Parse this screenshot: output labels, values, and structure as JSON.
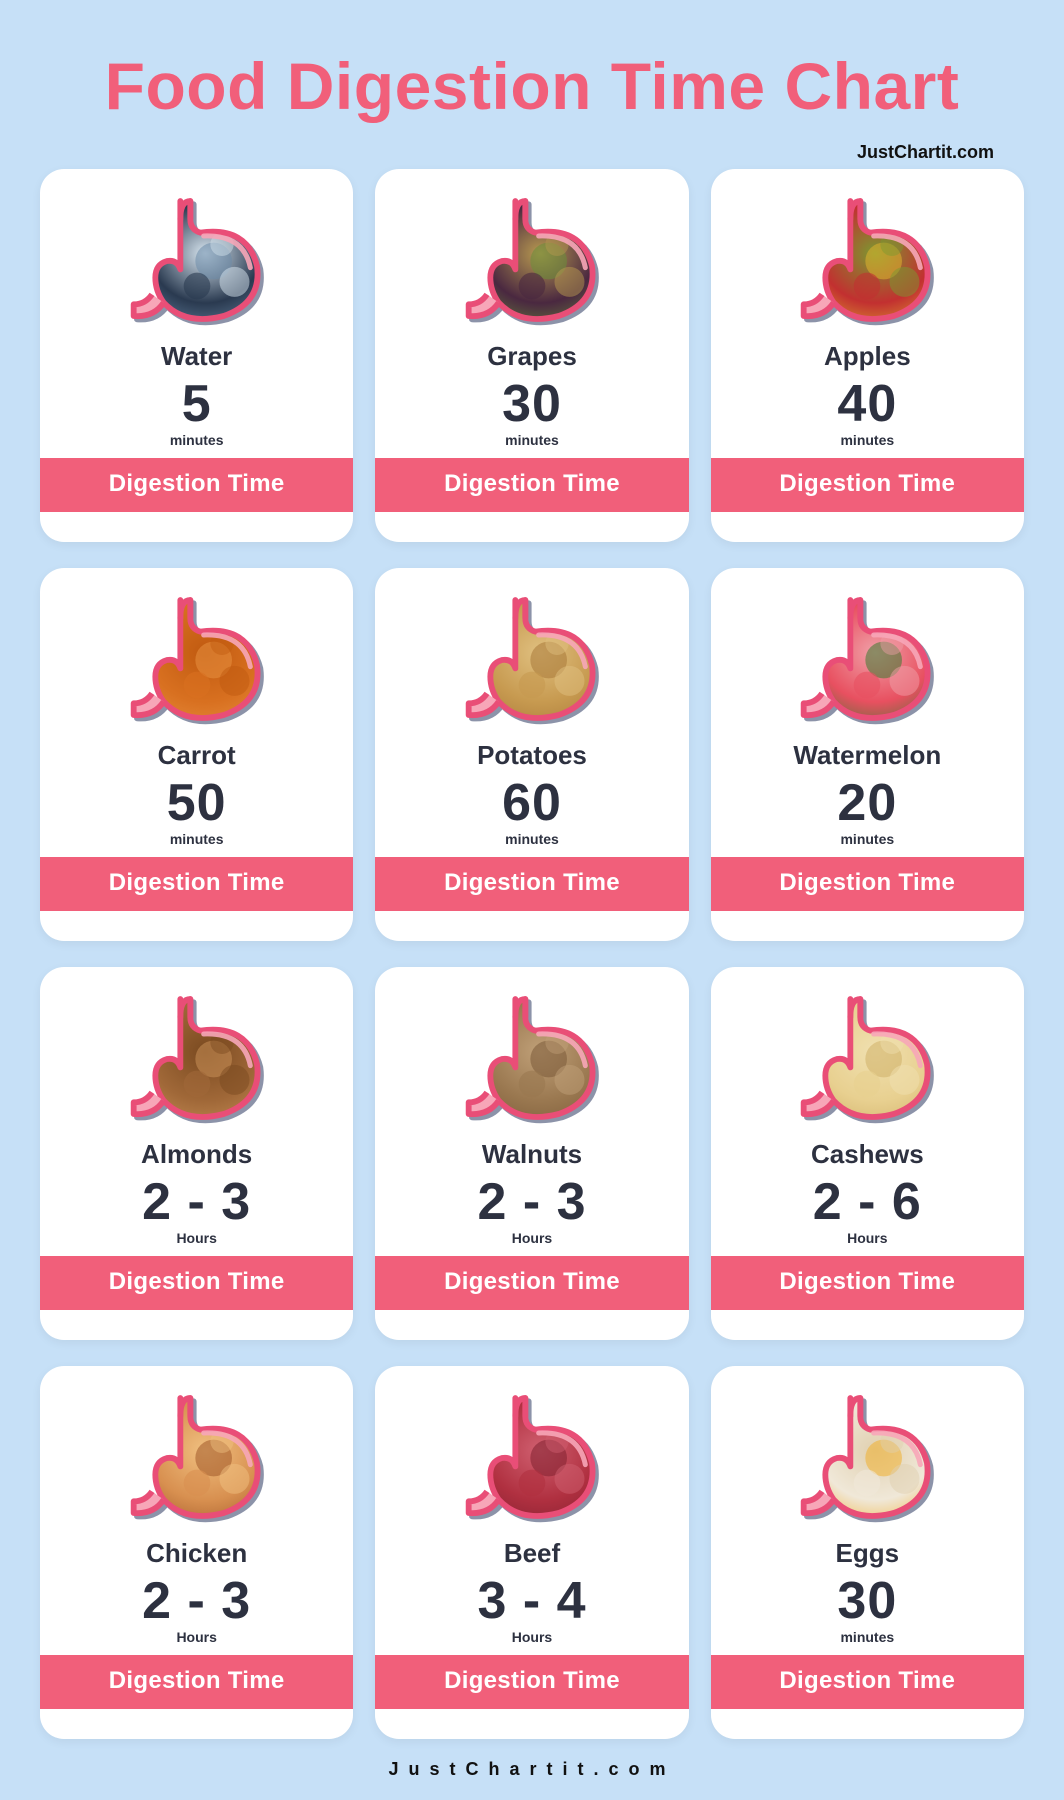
{
  "title": "Food Digestion Time Chart",
  "attribution_top": "JustChartit.com",
  "attribution_bottom": "JustChartit.com",
  "banner_label": "Digestion Time",
  "colors": {
    "background": "#c6e0f7",
    "card_bg": "#ffffff",
    "title": "#f15f7a",
    "banner_bg": "#f15f7a",
    "banner_text": "#ffffff",
    "text_dark": "#2d3140",
    "stomach_outline": "#e94e77",
    "stomach_highlight": "#f7a6b8",
    "stomach_shadow": "#2d3b63"
  },
  "typography": {
    "title_fontsize": 66,
    "food_name_fontsize": 26,
    "duration_fontsize": 52,
    "unit_fontsize": 14,
    "banner_fontsize": 24,
    "attribution_fontsize": 18
  },
  "layout": {
    "columns": 3,
    "rows": 4,
    "card_radius": 24,
    "gap_row": 26,
    "gap_col": 22
  },
  "food_fills": {
    "Water": [
      "#2a3a50",
      "#6c8aa8",
      "#d8e6f0"
    ],
    "Grapes": [
      "#4a2840",
      "#6a8e3a",
      "#b89a50"
    ],
    "Apples": [
      "#c23030",
      "#e0b030",
      "#7a9a30"
    ],
    "Carrot": [
      "#d87020",
      "#e89040",
      "#c05a10"
    ],
    "Potatoes": [
      "#c79a50",
      "#a87838",
      "#e0c080"
    ],
    "Watermelon": [
      "#e85060",
      "#3a7a30",
      "#f0a0a8"
    ],
    "Almonds": [
      "#a06838",
      "#c89058",
      "#7a4a20"
    ],
    "Walnuts": [
      "#9a7850",
      "#7a5a38",
      "#c0a078"
    ],
    "Cashews": [
      "#e8d090",
      "#d0b068",
      "#f0e0b0"
    ],
    "Chicken": [
      "#d89050",
      "#a05828",
      "#f0c080"
    ],
    "Beef": [
      "#b03040",
      "#802030",
      "#d06070"
    ],
    "Eggs": [
      "#f0e8d8",
      "#f0b030",
      "#e0d0b0"
    ]
  },
  "items": [
    {
      "name": "Water",
      "duration": "5",
      "unit": "minutes"
    },
    {
      "name": "Grapes",
      "duration": "30",
      "unit": "minutes"
    },
    {
      "name": "Apples",
      "duration": "40",
      "unit": "minutes"
    },
    {
      "name": "Carrot",
      "duration": "50",
      "unit": "minutes"
    },
    {
      "name": "Potatoes",
      "duration": "60",
      "unit": "minutes"
    },
    {
      "name": "Watermelon",
      "duration": "20",
      "unit": "minutes"
    },
    {
      "name": "Almonds",
      "duration": "2 - 3",
      "unit": "Hours"
    },
    {
      "name": "Walnuts",
      "duration": "2 - 3",
      "unit": "Hours"
    },
    {
      "name": "Cashews",
      "duration": "2 - 6",
      "unit": "Hours"
    },
    {
      "name": "Chicken",
      "duration": "2 - 3",
      "unit": "Hours"
    },
    {
      "name": "Beef",
      "duration": "3 - 4",
      "unit": "Hours"
    },
    {
      "name": "Eggs",
      "duration": "30",
      "unit": "minutes"
    }
  ]
}
